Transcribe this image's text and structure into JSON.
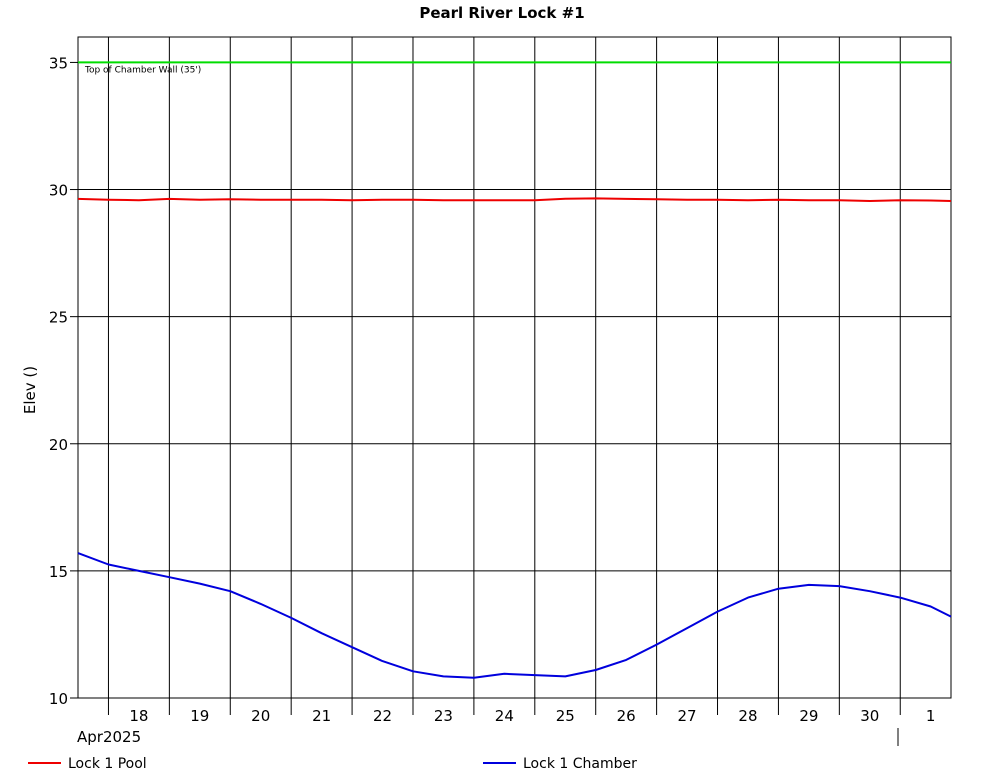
{
  "chart_data": {
    "type": "line",
    "title": "Pearl River Lock #1",
    "ylabel": "Elev ()",
    "xlabel": "",
    "ylim": [
      10,
      36
    ],
    "yticks": [
      10,
      15,
      20,
      25,
      30,
      35
    ],
    "xrange": [
      "2025-04-17T12:00",
      "2025-05-01T20:00"
    ],
    "x_tick_labels": [
      "18",
      "19",
      "20",
      "21",
      "22",
      "23",
      "24",
      "25",
      "26",
      "27",
      "28",
      "29",
      "30",
      "1"
    ],
    "x_sub_label": "Apr2025",
    "grid": true,
    "reference_line": {
      "label": "Top of Chamber Wall (35')",
      "value": 35,
      "color": "#00dd00"
    },
    "series": [
      {
        "name": "Lock 1 Pool",
        "color": "#ee0000",
        "x": [
          "2025-04-17T12:00",
          "2025-04-18T00:00",
          "2025-04-18T12:00",
          "2025-04-19T00:00",
          "2025-04-19T12:00",
          "2025-04-20T00:00",
          "2025-04-20T12:00",
          "2025-04-21T00:00",
          "2025-04-21T12:00",
          "2025-04-22T00:00",
          "2025-04-22T12:00",
          "2025-04-23T00:00",
          "2025-04-23T12:00",
          "2025-04-24T00:00",
          "2025-04-24T12:00",
          "2025-04-25T00:00",
          "2025-04-25T08:00",
          "2025-04-25T12:00",
          "2025-04-26T00:00",
          "2025-04-26T12:00",
          "2025-04-27T00:00",
          "2025-04-27T12:00",
          "2025-04-28T00:00",
          "2025-04-28T12:00",
          "2025-04-29T00:00",
          "2025-04-29T12:00",
          "2025-04-30T00:00",
          "2025-04-30T12:00",
          "2025-05-01T00:00",
          "2025-05-01T12:00",
          "2025-05-01T20:00"
        ],
        "values": [
          29.63,
          29.6,
          29.58,
          29.63,
          29.6,
          29.62,
          29.6,
          29.6,
          29.6,
          29.58,
          29.6,
          29.6,
          29.58,
          29.58,
          29.58,
          29.58,
          29.62,
          29.64,
          29.65,
          29.63,
          29.62,
          29.6,
          29.6,
          29.58,
          29.6,
          29.58,
          29.58,
          29.55,
          29.58,
          29.57,
          29.55
        ]
      },
      {
        "name": "Lock 1 Chamber",
        "color": "#0000dd",
        "x": [
          "2025-04-17T12:00",
          "2025-04-18T00:00",
          "2025-04-18T12:00",
          "2025-04-19T00:00",
          "2025-04-19T12:00",
          "2025-04-20T00:00",
          "2025-04-20T12:00",
          "2025-04-21T00:00",
          "2025-04-21T12:00",
          "2025-04-22T00:00",
          "2025-04-22T12:00",
          "2025-04-23T00:00",
          "2025-04-23T12:00",
          "2025-04-24T00:00",
          "2025-04-24T12:00",
          "2025-04-25T00:00",
          "2025-04-25T12:00",
          "2025-04-26T00:00",
          "2025-04-26T12:00",
          "2025-04-27T00:00",
          "2025-04-27T12:00",
          "2025-04-28T00:00",
          "2025-04-28T12:00",
          "2025-04-29T00:00",
          "2025-04-29T12:00",
          "2025-04-30T00:00",
          "2025-04-30T12:00",
          "2025-05-01T00:00",
          "2025-05-01T12:00",
          "2025-05-01T20:00"
        ],
        "values": [
          15.7,
          15.25,
          15.0,
          14.75,
          14.5,
          14.2,
          13.7,
          13.15,
          12.55,
          12.0,
          11.45,
          11.05,
          10.85,
          10.8,
          10.95,
          10.9,
          10.85,
          11.1,
          11.5,
          12.1,
          12.75,
          13.4,
          13.95,
          14.3,
          14.45,
          14.4,
          14.2,
          13.95,
          13.6,
          13.2
        ]
      }
    ],
    "legend": "bottom"
  }
}
